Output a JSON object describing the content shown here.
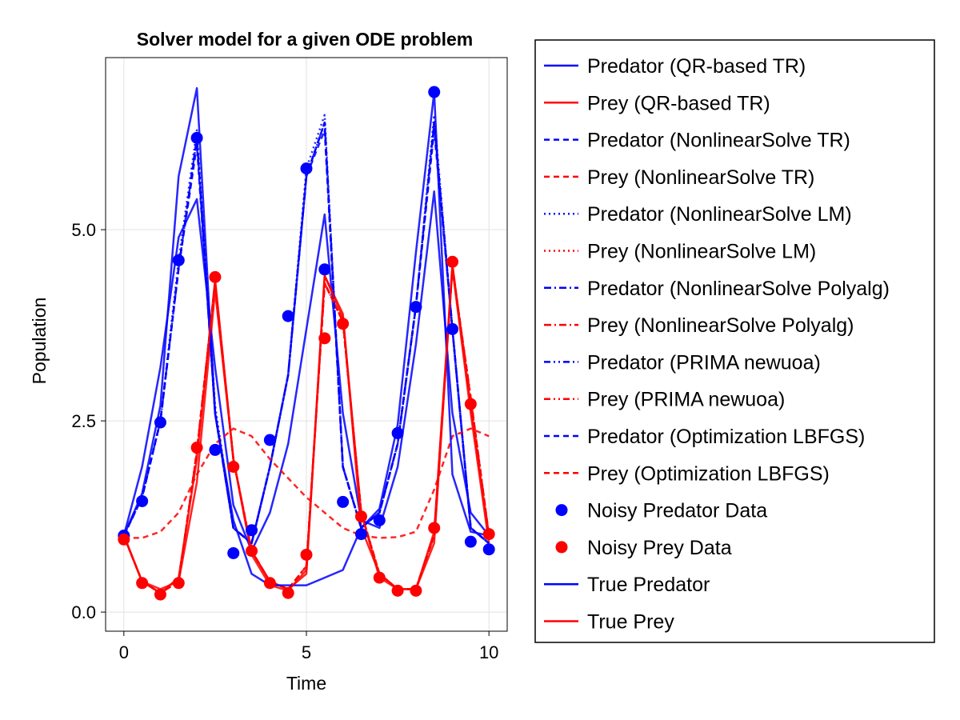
{
  "chart_data": {
    "type": "line",
    "title": "Solver model for a given ODE problem",
    "xlabel": "Time",
    "ylabel": "Population",
    "xlim": [
      -0.5,
      10.5
    ],
    "ylim": [
      -0.25,
      7.25
    ],
    "xticks": [
      0,
      5,
      10
    ],
    "xtick_labels": [
      "0",
      "5",
      "10"
    ],
    "yticks": [
      0.0,
      2.5,
      5.0
    ],
    "ytick_labels": [
      "0.0",
      "2.5",
      "5.0"
    ],
    "grid": true,
    "legend_position": "outside-right",
    "colors": {
      "predator": "#0000ff",
      "prey": "#ff0000"
    },
    "x": [
      0,
      0.5,
      1.0,
      1.5,
      2.0,
      2.5,
      3.0,
      3.5,
      4.0,
      4.5,
      5.0,
      5.5,
      6.0,
      6.5,
      7.0,
      7.5,
      8.0,
      8.5,
      9.0,
      9.5,
      10.0
    ],
    "series": [
      {
        "name": "Predator (QR-based TR)",
        "color": "#0000ff",
        "dash": "solid",
        "kind": "line",
        "values": [
          1.0,
          1.9,
          3.2,
          4.9,
          5.4,
          3.2,
          1.4,
          0.8,
          1.3,
          2.2,
          3.7,
          5.2,
          2.6,
          1.2,
          1.1,
          1.9,
          3.5,
          5.5,
          2.6,
          1.3,
          1.0
        ]
      },
      {
        "name": "Prey (QR-based TR)",
        "color": "#ff0000",
        "dash": "solid",
        "kind": "line",
        "values": [
          1.0,
          0.4,
          0.3,
          0.4,
          1.7,
          4.2,
          2.0,
          0.8,
          0.4,
          0.3,
          0.5,
          4.4,
          3.9,
          1.1,
          0.5,
          0.3,
          0.3,
          0.9,
          4.5,
          2.6,
          0.9
        ]
      },
      {
        "name": "Predator (NonlinearSolve TR)",
        "color": "#0000ff",
        "dash": "7,5",
        "kind": "line",
        "values": [
          1.0,
          1.5,
          2.5,
          4.5,
          6.2,
          2.6,
          1.1,
          0.9,
          1.9,
          3.1,
          5.7,
          6.4,
          1.9,
          1.1,
          1.3,
          2.2,
          4.0,
          6.4,
          3.7,
          1.1,
          0.9
        ]
      },
      {
        "name": "Prey (NonlinearSolve TR)",
        "color": "#ff0000",
        "dash": "7,5",
        "kind": "line",
        "values": [
          1.0,
          0.4,
          0.25,
          0.4,
          2.1,
          4.3,
          2.0,
          0.8,
          0.4,
          0.3,
          0.6,
          4.3,
          3.8,
          1.3,
          0.5,
          0.3,
          0.3,
          1.0,
          4.5,
          2.8,
          1.0
        ]
      },
      {
        "name": "Predator (NonlinearSolve LM)",
        "color": "#0000ff",
        "dash": "2,4",
        "kind": "line",
        "values": [
          1.0,
          1.5,
          2.5,
          4.6,
          6.3,
          2.7,
          1.1,
          0.9,
          1.9,
          3.1,
          5.8,
          6.5,
          1.9,
          1.1,
          1.3,
          2.2,
          4.0,
          6.5,
          3.7,
          1.1,
          0.9
        ]
      },
      {
        "name": "Prey (NonlinearSolve LM)",
        "color": "#ff0000",
        "dash": "2,4",
        "kind": "line",
        "values": [
          1.0,
          0.4,
          0.25,
          0.4,
          2.1,
          4.3,
          2.0,
          0.8,
          0.4,
          0.3,
          0.6,
          4.3,
          3.8,
          1.3,
          0.5,
          0.3,
          0.3,
          1.0,
          4.5,
          2.8,
          1.0
        ]
      },
      {
        "name": "Predator (NonlinearSolve Polyalg)",
        "color": "#0000ff",
        "dash": "9,4,2,4",
        "kind": "line",
        "values": [
          1.0,
          1.5,
          2.5,
          4.5,
          6.2,
          2.6,
          1.1,
          0.9,
          1.9,
          3.1,
          5.7,
          6.4,
          1.9,
          1.1,
          1.3,
          2.2,
          4.0,
          6.4,
          3.7,
          1.1,
          0.9
        ]
      },
      {
        "name": "Prey (NonlinearSolve Polyalg)",
        "color": "#ff0000",
        "dash": "9,4,2,4",
        "kind": "line",
        "values": [
          1.0,
          0.4,
          0.25,
          0.4,
          2.1,
          4.3,
          2.0,
          0.8,
          0.4,
          0.3,
          0.6,
          4.3,
          3.8,
          1.3,
          0.5,
          0.3,
          0.3,
          1.0,
          4.5,
          2.8,
          1.0
        ]
      },
      {
        "name": "Predator (PRIMA newuoa)",
        "color": "#0000ff",
        "dash": "8,4,2,4,2,4",
        "kind": "line",
        "values": [
          1.0,
          1.5,
          2.5,
          4.5,
          6.2,
          2.6,
          1.1,
          0.9,
          1.9,
          3.1,
          5.7,
          6.4,
          1.9,
          1.1,
          1.3,
          2.2,
          4.0,
          6.4,
          3.7,
          1.1,
          0.9
        ]
      },
      {
        "name": "Prey (PRIMA newuoa)",
        "color": "#ff0000",
        "dash": "8,4,2,4,2,4",
        "kind": "line",
        "values": [
          1.0,
          0.4,
          0.25,
          0.4,
          2.1,
          4.3,
          2.0,
          0.8,
          0.4,
          0.3,
          0.6,
          4.3,
          3.8,
          1.3,
          0.5,
          0.3,
          0.3,
          1.0,
          4.5,
          2.8,
          1.0
        ]
      },
      {
        "name": "Predator (Optimization LBFGS)",
        "color": "#0000ff",
        "dash": "7,5",
        "kind": "line",
        "values": [
          1.0,
          1.5,
          2.5,
          4.5,
          6.1,
          2.6,
          1.1,
          0.9,
          1.9,
          3.1,
          5.7,
          6.3,
          1.9,
          1.1,
          1.3,
          2.2,
          4.0,
          6.3,
          3.7,
          1.1,
          0.9
        ]
      },
      {
        "name": "Prey (Optimization LBFGS)",
        "color": "#ff0000",
        "dash": "7,5",
        "kind": "line",
        "values": [
          0.97,
          0.97,
          1.05,
          1.3,
          1.8,
          2.2,
          2.4,
          2.3,
          2.0,
          1.75,
          1.5,
          1.3,
          1.1,
          1.0,
          0.97,
          0.98,
          1.05,
          1.6,
          2.3,
          2.4,
          2.3
        ]
      },
      {
        "name": "Noisy Predator Data",
        "color": "#0000ff",
        "dash": "none",
        "kind": "scatter",
        "values": [
          1.0,
          1.45,
          2.48,
          4.6,
          6.2,
          2.12,
          0.77,
          1.07,
          2.25,
          3.87,
          5.8,
          4.48,
          1.44,
          1.02,
          1.2,
          2.34,
          3.99,
          6.8,
          3.7,
          0.92,
          0.82
        ]
      },
      {
        "name": "Noisy Prey Data",
        "color": "#ff0000",
        "dash": "none",
        "kind": "scatter",
        "values": [
          0.95,
          0.38,
          0.23,
          0.38,
          2.15,
          4.38,
          1.9,
          0.8,
          0.38,
          0.25,
          0.75,
          3.58,
          3.77,
          1.25,
          0.45,
          0.28,
          0.28,
          1.1,
          4.58,
          2.72,
          1.02
        ]
      },
      {
        "name": "True Predator",
        "color": "#0000ff",
        "dash": "solid",
        "kind": "line",
        "values": [
          1.0,
          1.55,
          2.7,
          5.7,
          6.85,
          2.6,
          1.2,
          0.5,
          0.35,
          0.35,
          0.35,
          0.45,
          0.55,
          1.1,
          1.35,
          2.45,
          4.7,
          6.8,
          1.8,
          1.05,
          1.0
        ]
      },
      {
        "name": "True Prey",
        "color": "#ff0000",
        "dash": "solid",
        "kind": "line",
        "values": [
          1.0,
          0.4,
          0.25,
          0.45,
          2.0,
          4.35,
          2.0,
          0.75,
          0.35,
          0.28,
          0.55,
          4.4,
          3.85,
          1.3,
          0.45,
          0.3,
          0.3,
          1.05,
          4.55,
          2.7,
          0.98
        ]
      }
    ]
  }
}
